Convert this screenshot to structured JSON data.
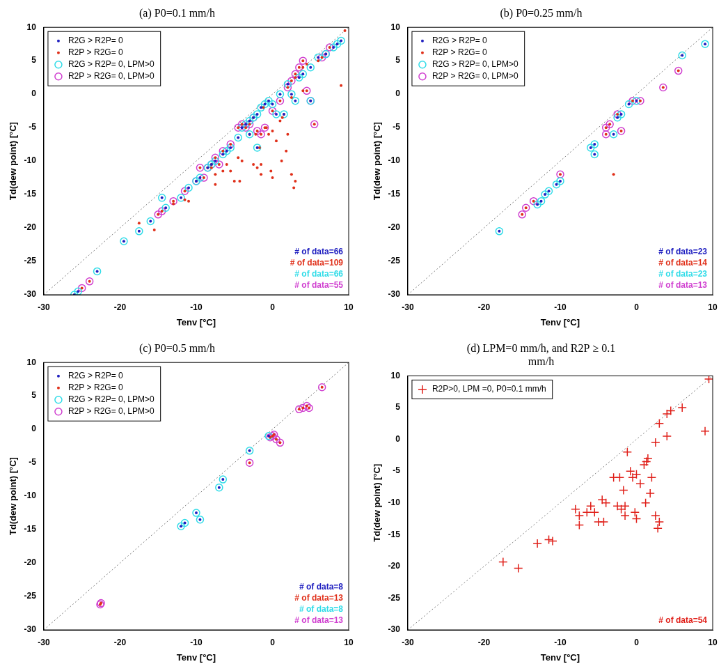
{
  "chart_data": [
    {
      "type": "scatter",
      "title": "(a) P0=0.1 mm/h",
      "x_label": "Tenv [°C]",
      "y_label": "Td(dew point) [°C]",
      "xlim": [
        -30,
        10
      ],
      "ylim": [
        -30,
        10
      ],
      "xticks": [
        -30,
        -20,
        -10,
        0,
        10
      ],
      "yticks": [
        -30,
        -25,
        -20,
        -15,
        -10,
        -5,
        0,
        5,
        10
      ],
      "grid": false,
      "legend": "upper left",
      "series": [
        {
          "name": "R2G > R2P= 0",
          "color": "#2020c0",
          "marker": "dot",
          "x": [
            -26,
            -25.5,
            -23,
            -19.5,
            -17.5,
            -16,
            -14,
            -12,
            -11,
            -10,
            -9.5,
            -8.5,
            -7.5,
            -6.5,
            -5.5,
            -4.5,
            -4,
            -3.5,
            -3,
            -2.5,
            -2,
            -1.5,
            -1,
            0,
            -0.5,
            0.5,
            1,
            2,
            2.5,
            3,
            3.5,
            4,
            5,
            6,
            7,
            8,
            8.5,
            9,
            -2,
            -3,
            -14.5,
            -8,
            -6,
            1.5,
            5
          ],
          "values": [
            -30,
            -29.5,
            -26.5,
            -22,
            -20.5,
            -19,
            -17,
            -15.5,
            -14,
            -13,
            -12.5,
            -11,
            -10,
            -9,
            -8,
            -6.5,
            -5,
            -4.5,
            -4,
            -3.5,
            -3,
            -2,
            -1.5,
            -1.5,
            -1,
            -3,
            0,
            1.5,
            0,
            -1,
            2.5,
            3,
            4,
            5.5,
            6,
            7,
            7.5,
            8,
            -8,
            -6,
            -15.5,
            -10.5,
            -8.5,
            -3,
            -1
          ]
        },
        {
          "name": "R2P > R2G= 0",
          "color": "#e0301a",
          "marker": "dot",
          "x": [
            -25,
            -24,
            -15,
            -14.5,
            -13,
            -11.5,
            -10,
            -9,
            -8.5,
            -8,
            -7.5,
            -6.5,
            -5.5,
            -4.5,
            -4,
            -3.5,
            -2.5,
            -2,
            -1.5,
            -1,
            0,
            1,
            2,
            3,
            3.5,
            4,
            4.5,
            5,
            5.5,
            6.5,
            7,
            7.5,
            -9.5,
            -7,
            -3,
            2.5,
            -17.5,
            -15.5,
            -13,
            -11.5,
            -11,
            -8,
            -7.5,
            -7.5,
            -6.5,
            -6,
            -5.5,
            -5,
            -4.5,
            -4.3,
            -4,
            -3,
            -2.5,
            -2.2,
            -2,
            -1.5,
            -1.5,
            -1.2,
            -0.8,
            -0.5,
            0,
            -0.2,
            0,
            0.5,
            1,
            1.3,
            1.5,
            1.8,
            2,
            2.5,
            2.8,
            3,
            2.5,
            3,
            4,
            4,
            4.5,
            6,
            9,
            9.5,
            1.2,
            -1.7
          ],
          "values": [
            -29,
            -28,
            -18,
            -17.5,
            -16,
            -14.5,
            -13,
            -12.5,
            -11,
            -10.5,
            -9.5,
            -8.5,
            -7.5,
            -5,
            -4.5,
            -5,
            -3.5,
            -5.5,
            -6,
            -5,
            -2.5,
            -1,
            1,
            3,
            4,
            5,
            0.5,
            -1,
            -4.5,
            5.5,
            6,
            7,
            -11,
            -10.5,
            -4.5,
            2,
            -19.3,
            -20.3,
            -16.4,
            -15.8,
            -16,
            -11,
            -12,
            -13.5,
            -11.5,
            -10.5,
            -11.5,
            -13,
            -9.5,
            -13,
            -10,
            -6,
            -10.5,
            -6,
            -11,
            -12,
            -10.5,
            -2,
            -5,
            -6,
            -5.5,
            -11.5,
            -12.5,
            -7,
            -4,
            -3.5,
            -3,
            -8.5,
            -6,
            -12,
            -14,
            -13,
            -0.5,
            2.5,
            0.5,
            4,
            4.5,
            5,
            1.3,
            9.5,
            -10,
            -8
          ]
        },
        {
          "name": "R2G > R2P= 0, LPM>0",
          "color": "#30dce8",
          "marker": "circle",
          "x": [
            -26,
            -25.5,
            -23,
            -19.5,
            -17.5,
            -16,
            -14,
            -12,
            -11,
            -10,
            -9.5,
            -8.5,
            -7.5,
            -6.5,
            -5.5,
            -4.5,
            -4,
            -3.5,
            -3,
            -2.5,
            -2,
            -1.5,
            -1,
            0,
            -0.5,
            0.5,
            1,
            2,
            2.5,
            3,
            3.5,
            4,
            5,
            6,
            7,
            8,
            8.5,
            9,
            -2,
            -3,
            -14.5,
            -8,
            -6,
            1.5,
            5
          ],
          "values": [
            -30,
            -29.5,
            -26.5,
            -22,
            -20.5,
            -19,
            -17,
            -15.5,
            -14,
            -13,
            -12.5,
            -11,
            -10,
            -9,
            -8,
            -6.5,
            -5,
            -4.5,
            -4,
            -3.5,
            -3,
            -2,
            -1.5,
            -1.5,
            -1,
            -3,
            0,
            1.5,
            0,
            -1,
            2.5,
            3,
            4,
            5.5,
            6,
            7,
            7.5,
            8,
            -8,
            -6,
            -15.5,
            -10.5,
            -8.5,
            -3,
            -1
          ]
        },
        {
          "name": "R2P > R2G= 0, LPM>0",
          "color": "#d040d0",
          "marker": "circle",
          "x": [
            -25,
            -24,
            -15,
            -14.5,
            -13,
            -11.5,
            -10,
            -9,
            -8.5,
            -8,
            -7.5,
            -6.5,
            -5.5,
            -4.5,
            -4,
            -3.5,
            -2.5,
            -2,
            -1.5,
            -1,
            0,
            1,
            2,
            3,
            3.5,
            4,
            4.5,
            5,
            5.5,
            6.5,
            7,
            7.5,
            -9.5,
            -7,
            -3,
            2.5
          ],
          "values": [
            -29,
            -28,
            -18,
            -17.5,
            -16,
            -14.5,
            -13,
            -12.5,
            -11,
            -10.5,
            -9.5,
            -8.5,
            -7.5,
            -5,
            -4.5,
            -5,
            -3.5,
            -5.5,
            -6,
            -5,
            -2.5,
            -1,
            1,
            3,
            4,
            5,
            0.5,
            -1,
            -4.5,
            5.5,
            6,
            7,
            -11,
            -10.5,
            -4.5,
            2
          ]
        },
        {
          "type": "line",
          "color": "#808080",
          "line_style": "dotted",
          "x": [
            -30,
            10
          ],
          "values": [
            -30,
            10
          ]
        }
      ],
      "annotations": [
        {
          "text": "# of data=66",
          "color": "#2020c0"
        },
        {
          "text": "# of data=109",
          "color": "#e0301a"
        },
        {
          "text": "# of data=66",
          "color": "#30dce8"
        },
        {
          "text": "# of data=55",
          "color": "#d040d0"
        }
      ]
    },
    {
      "type": "scatter",
      "title": "(b) P0=0.25 mm/h",
      "x_label": "Tenv [°C]",
      "y_label": "Td(dew point) [°C]",
      "xlim": [
        -30,
        10
      ],
      "ylim": [
        -30,
        10
      ],
      "xticks": [
        -30,
        -20,
        -10,
        0,
        10
      ],
      "yticks": [
        -30,
        -25,
        -20,
        -15,
        -10,
        -5,
        0,
        5,
        10
      ],
      "grid": false,
      "legend": "upper left",
      "series": [
        {
          "name": "R2G > R2P= 0",
          "color": "#2020c0",
          "marker": "dot",
          "x": [
            -18,
            -13,
            -12.5,
            -12,
            -11.5,
            -10.5,
            -10,
            -6,
            -5.5,
            -5.5,
            -3,
            -2.5,
            -2,
            -1,
            0,
            6,
            9
          ],
          "values": [
            -20.5,
            -16.5,
            -16,
            -15,
            -14.5,
            -13.5,
            -13,
            -8,
            -7.5,
            -9,
            -6,
            -3.5,
            -3,
            -1.5,
            -1,
            5.8,
            7.5
          ]
        },
        {
          "name": "R2P > R2G= 0",
          "color": "#e0301a",
          "marker": "dot",
          "x": [
            -15,
            -14.5,
            -13.5,
            -10,
            -4,
            -3.5,
            -2.5,
            -2,
            -0.5,
            0.5,
            3.5,
            5.5,
            -4,
            -3
          ],
          "values": [
            -18,
            -17,
            -16,
            -12,
            -5,
            -4.5,
            -3,
            -5.5,
            -1,
            -1,
            1,
            3.5,
            -6,
            -12
          ]
        },
        {
          "name": "R2G > R2P= 0, LPM>0",
          "color": "#30dce8",
          "marker": "circle",
          "x": [
            -18,
            -13,
            -12.5,
            -12,
            -11.5,
            -10.5,
            -10,
            -6,
            -5.5,
            -5.5,
            -3,
            -2.5,
            -2,
            -1,
            0,
            6,
            9
          ],
          "values": [
            -20.5,
            -16.5,
            -16,
            -15,
            -14.5,
            -13.5,
            -13,
            -8,
            -7.5,
            -9,
            -6,
            -3.5,
            -3,
            -1.5,
            -1,
            5.8,
            7.5
          ]
        },
        {
          "name": "R2P > R2G= 0, LPM>0",
          "color": "#d040d0",
          "marker": "circle",
          "x": [
            -15,
            -14.5,
            -13.5,
            -10,
            -4,
            -3.5,
            -2.5,
            -2,
            -0.5,
            0.5,
            3.5,
            5.5,
            -4
          ],
          "values": [
            -18,
            -17,
            -16,
            -12,
            -5,
            -4.5,
            -3,
            -5.5,
            -1,
            -1,
            1,
            3.5,
            -6
          ]
        },
        {
          "type": "line",
          "color": "#808080",
          "line_style": "dotted",
          "x": [
            -30,
            10
          ],
          "values": [
            -30,
            10
          ]
        }
      ],
      "annotations": [
        {
          "text": "# of data=23",
          "color": "#2020c0"
        },
        {
          "text": "# of data=14",
          "color": "#e0301a"
        },
        {
          "text": "# of data=23",
          "color": "#30dce8"
        },
        {
          "text": "# of data=13",
          "color": "#d040d0"
        }
      ]
    },
    {
      "type": "scatter",
      "title": "(c) P0=0.5 mm/h",
      "x_label": "Tenv [°C]",
      "y_label": "Td(dew point) [°C]",
      "xlim": [
        -30,
        10
      ],
      "ylim": [
        -30,
        10
      ],
      "xticks": [
        -30,
        -20,
        -10,
        0,
        10
      ],
      "yticks": [
        -30,
        -25,
        -20,
        -15,
        -10,
        -5,
        0,
        5,
        10
      ],
      "grid": false,
      "legend": "upper left",
      "series": [
        {
          "name": "R2G > R2P= 0",
          "color": "#2020c0",
          "marker": "dot",
          "x": [
            -12,
            -11.5,
            -10,
            -9.5,
            -7,
            -6.5,
            -3,
            -0.5
          ],
          "values": [
            -14.5,
            -14,
            -12.5,
            -13.5,
            -8.7,
            -7.5,
            -3.2,
            -1
          ]
        },
        {
          "name": "R2P > R2G= 0",
          "color": "#e0301a",
          "marker": "dot",
          "x": [
            -22.5,
            -22.6,
            -3,
            0,
            0.5,
            1,
            0.2,
            3.5,
            4,
            4.5,
            4.8,
            6.5,
            -0.3
          ],
          "values": [
            -26,
            -26.2,
            -5,
            -1,
            -1.5,
            -2,
            -0.8,
            3,
            3.2,
            3.5,
            3.2,
            6.3,
            -1.2
          ]
        },
        {
          "name": "R2G > R2P= 0, LPM>0",
          "color": "#30dce8",
          "marker": "circle",
          "x": [
            -12,
            -11.5,
            -10,
            -9.5,
            -7,
            -6.5,
            -3,
            -0.5
          ],
          "values": [
            -14.5,
            -14,
            -12.5,
            -13.5,
            -8.7,
            -7.5,
            -3.2,
            -1
          ]
        },
        {
          "name": "R2P > R2G= 0, LPM>0",
          "color": "#d040d0",
          "marker": "circle",
          "x": [
            -22.5,
            -22.6,
            -3,
            0,
            0.5,
            1,
            0.2,
            3.5,
            4,
            4.5,
            4.8,
            6.5,
            -0.3
          ],
          "values": [
            -26,
            -26.2,
            -5,
            -1,
            -1.5,
            -2,
            -0.8,
            3,
            3.2,
            3.5,
            3.2,
            6.3,
            -1.2
          ]
        },
        {
          "type": "line",
          "color": "#808080",
          "line_style": "dotted",
          "x": [
            -30,
            10
          ],
          "values": [
            -30,
            10
          ]
        }
      ],
      "annotations": [
        {
          "text": "# of data=8",
          "color": "#2020c0"
        },
        {
          "text": "# of data=13",
          "color": "#e0301a"
        },
        {
          "text": "# of data=8",
          "color": "#30dce8"
        },
        {
          "text": "# of data=13",
          "color": "#d040d0"
        }
      ]
    },
    {
      "type": "scatter",
      "title": [
        "(d) LPM=0 mm/h, and R2P ≥ 0.1",
        "mm/h"
      ],
      "x_label": "Tenv [°C]",
      "y_label": "Td(dew point) [°C]",
      "xlim": [
        -30,
        10
      ],
      "ylim": [
        -30,
        10
      ],
      "xticks": [
        -30,
        -20,
        -10,
        0,
        10
      ],
      "yticks": [
        -30,
        -25,
        -20,
        -15,
        -10,
        -5,
        0,
        5,
        10
      ],
      "grid": false,
      "legend": "upper left",
      "series": [
        {
          "name": "R2P>0, LPM =0, P0=0.1 mm/h",
          "color": "#e0201a",
          "marker": "plus",
          "x": [
            -17.5,
            -15.5,
            -13,
            -11.5,
            -11,
            -8,
            -7.5,
            -7.5,
            -6.5,
            -6,
            -5.5,
            -5,
            -4.5,
            -4.3,
            -4,
            -3,
            -2.5,
            -2.2,
            -2,
            -1.5,
            -1.5,
            -1.2,
            -0.8,
            -0.5,
            0,
            -0.2,
            0,
            0.5,
            1,
            1.3,
            1.5,
            1.8,
            2,
            2.5,
            2.8,
            3,
            2.5,
            3,
            4,
            4,
            4.5,
            6,
            9,
            9.5,
            1.2,
            -1.7
          ],
          "values": [
            -19.3,
            -20.3,
            -16.4,
            -15.8,
            -16,
            -11,
            -12,
            -13.5,
            -11.5,
            -10.5,
            -11.5,
            -13,
            -9.5,
            -13,
            -10,
            -6,
            -10.5,
            -6,
            -11,
            -12,
            -10.5,
            -2,
            -5,
            -6,
            -5.5,
            -11.5,
            -12.5,
            -7,
            -4,
            -3.5,
            -3,
            -8.5,
            -6,
            -12,
            -14,
            -13,
            -0.5,
            2.5,
            0.5,
            4,
            4.5,
            5,
            1.3,
            9.5,
            -10,
            -8
          ]
        },
        {
          "type": "line",
          "color": "#808080",
          "line_style": "dotted",
          "x": [
            -30,
            10
          ],
          "values": [
            -30,
            10
          ]
        }
      ],
      "annotations": [
        {
          "text": "# of data=54",
          "color": "#e0201a"
        }
      ]
    }
  ]
}
